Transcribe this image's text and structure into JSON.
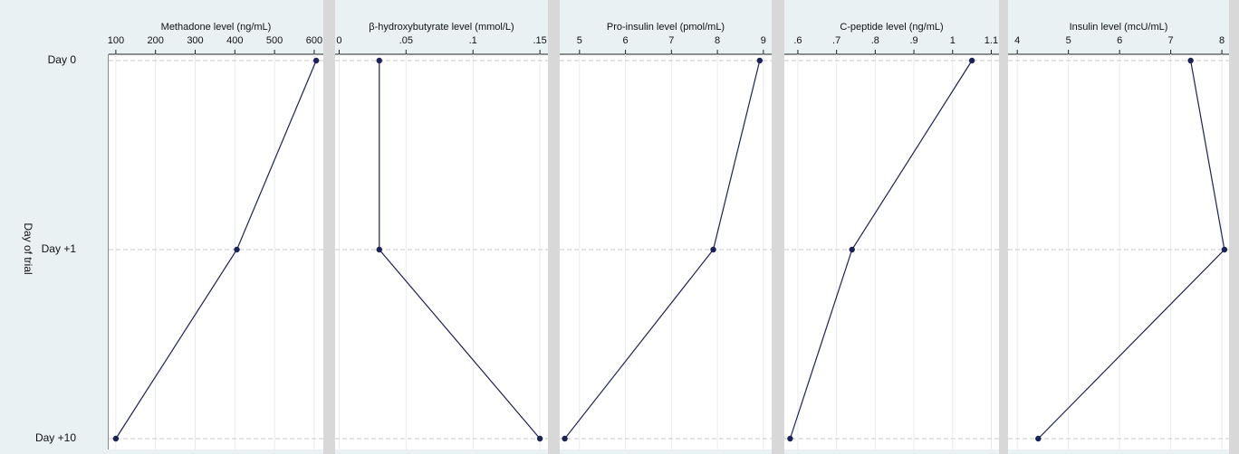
{
  "chart_data": [
    {
      "type": "line",
      "title": "Methadone level (ng/mL)",
      "ylabel": "Day of trial",
      "categories": [
        "Day 0",
        "Day +1",
        "Day +10"
      ],
      "values": [
        605,
        405,
        100
      ],
      "color": "#1b2256",
      "xlim": [
        82,
        623
      ],
      "xticks": [
        100,
        200,
        300,
        400,
        500,
        600
      ],
      "grid": true
    },
    {
      "type": "line",
      "title": "β-hydroxybutyrate level (mmol/L)",
      "values": [
        0.03,
        0.03,
        0.15
      ],
      "color": "#1b2256",
      "xlim": [
        -0.003,
        0.156
      ],
      "xticks": [
        0,
        {
          "value": 0.05,
          "label": ".05"
        },
        {
          "value": 0.1,
          "label": ".1"
        },
        {
          "value": 0.15,
          "label": ".15"
        }
      ],
      "grid": true
    },
    {
      "type": "line",
      "title": "Pro-insulin level (pmol/mL)",
      "values": [
        8.92,
        7.91,
        4.68
      ],
      "color": "#1b2256",
      "xlim": [
        4.57,
        9.18
      ],
      "xticks": [
        5,
        6,
        7,
        8,
        9
      ],
      "grid": true
    },
    {
      "type": "line",
      "title": "C-peptide level (ng/mL)",
      "values": [
        1.05,
        0.74,
        0.58
      ],
      "color": "#1b2256",
      "xlim": [
        0.565,
        1.12
      ],
      "xticks": [
        {
          "value": 0.6,
          "label": ".6"
        },
        {
          "value": 0.7,
          "label": ".7"
        },
        {
          "value": 0.8,
          "label": ".8"
        },
        {
          "value": 0.9,
          "label": ".9"
        },
        1,
        1.1
      ],
      "grid": true
    },
    {
      "type": "line",
      "title": "Insulin level (mcU/mL)",
      "values": [
        7.39,
        8.05,
        4.41
      ],
      "color": "#1b2256",
      "xlim": [
        3.82,
        8.14
      ],
      "xticks": [
        4,
        5,
        6,
        7,
        8
      ],
      "grid": true
    }
  ]
}
